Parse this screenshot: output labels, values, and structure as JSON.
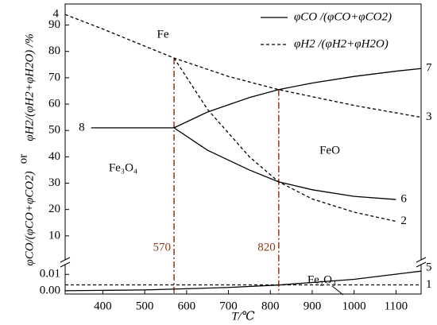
{
  "chart_data": [
    {
      "type": "line",
      "xlim": [
        310,
        1160
      ],
      "ylim": [
        0,
        98
      ],
      "yticks": [
        10,
        20,
        30,
        40,
        50,
        60,
        70,
        80,
        90
      ],
      "y_label": [
        "φH2/(φH2+φH2O) /%",
        "or",
        "φCO/(φCO+φCO2)"
      ],
      "legend": [
        {
          "name": "φCO /(φCO+φCO2)",
          "dash": false
        },
        {
          "name": "φH2 /(φH2+φH2O)",
          "dash": true
        }
      ],
      "annotations": [
        "Fe",
        "FeO",
        "Fe₃O₄"
      ],
      "vlines": [
        570,
        820
      ],
      "vline_color": "#8b3a1a",
      "series": [
        {
          "x": [
            372,
            570
          ],
          "values": [
            51,
            51
          ],
          "color": "#000000",
          "dash": false,
          "start_label": "8"
        },
        {
          "x": [
            570,
            650,
            750,
            820,
            900,
            1000,
            1100,
            1160
          ],
          "values": [
            51,
            57,
            62.5,
            65.5,
            68,
            70.5,
            72.5,
            73.5
          ],
          "color": "#000000",
          "dash": false,
          "end_label": "7"
        },
        {
          "x": [
            570,
            650,
            750,
            820,
            900,
            1000,
            1100
          ],
          "values": [
            51,
            42.5,
            35,
            30.5,
            27.5,
            25,
            23.8
          ],
          "color": "#000000",
          "dash": false,
          "end_label": "6"
        },
        {
          "x": [
            310,
            400,
            500,
            570,
            700,
            820,
            1000,
            1160
          ],
          "values": [
            94,
            88.5,
            82,
            77.5,
            70.5,
            65.5,
            59.5,
            55
          ],
          "color": "#000000",
          "dash": true,
          "start_label": "4",
          "end_label": "3"
        },
        {
          "x": [
            570,
            650,
            750,
            820,
            900,
            1000,
            1100
          ],
          "values": [
            77.5,
            58,
            40,
            30.5,
            24,
            19,
            15.5
          ],
          "color": "#000000",
          "dash": true,
          "end_label": "2"
        }
      ]
    },
    {
      "type": "line",
      "xlim": [
        310,
        1160
      ],
      "ylim": [
        -0.002,
        0.015
      ],
      "xticks": [
        400,
        500,
        600,
        700,
        800,
        900,
        1000,
        1100
      ],
      "yticks": [
        {
          "value": 0,
          "label": "0.00"
        },
        0.01
      ],
      "x_label": "T/℃",
      "annotations": [
        "Fe₂O₃"
      ],
      "series": [
        {
          "x": [
            310,
            500,
            700,
            820,
            1000,
            1160
          ],
          "values": [
            0,
            0.0005,
            0.002,
            0.0035,
            0.007,
            0.012
          ],
          "color": "#000000",
          "dash": false,
          "end_label": "5"
        },
        {
          "x": [
            310,
            1160
          ],
          "values": [
            0.0036,
            0.0036
          ],
          "color": "#000000",
          "dash": true,
          "end_label": "1"
        }
      ]
    }
  ]
}
